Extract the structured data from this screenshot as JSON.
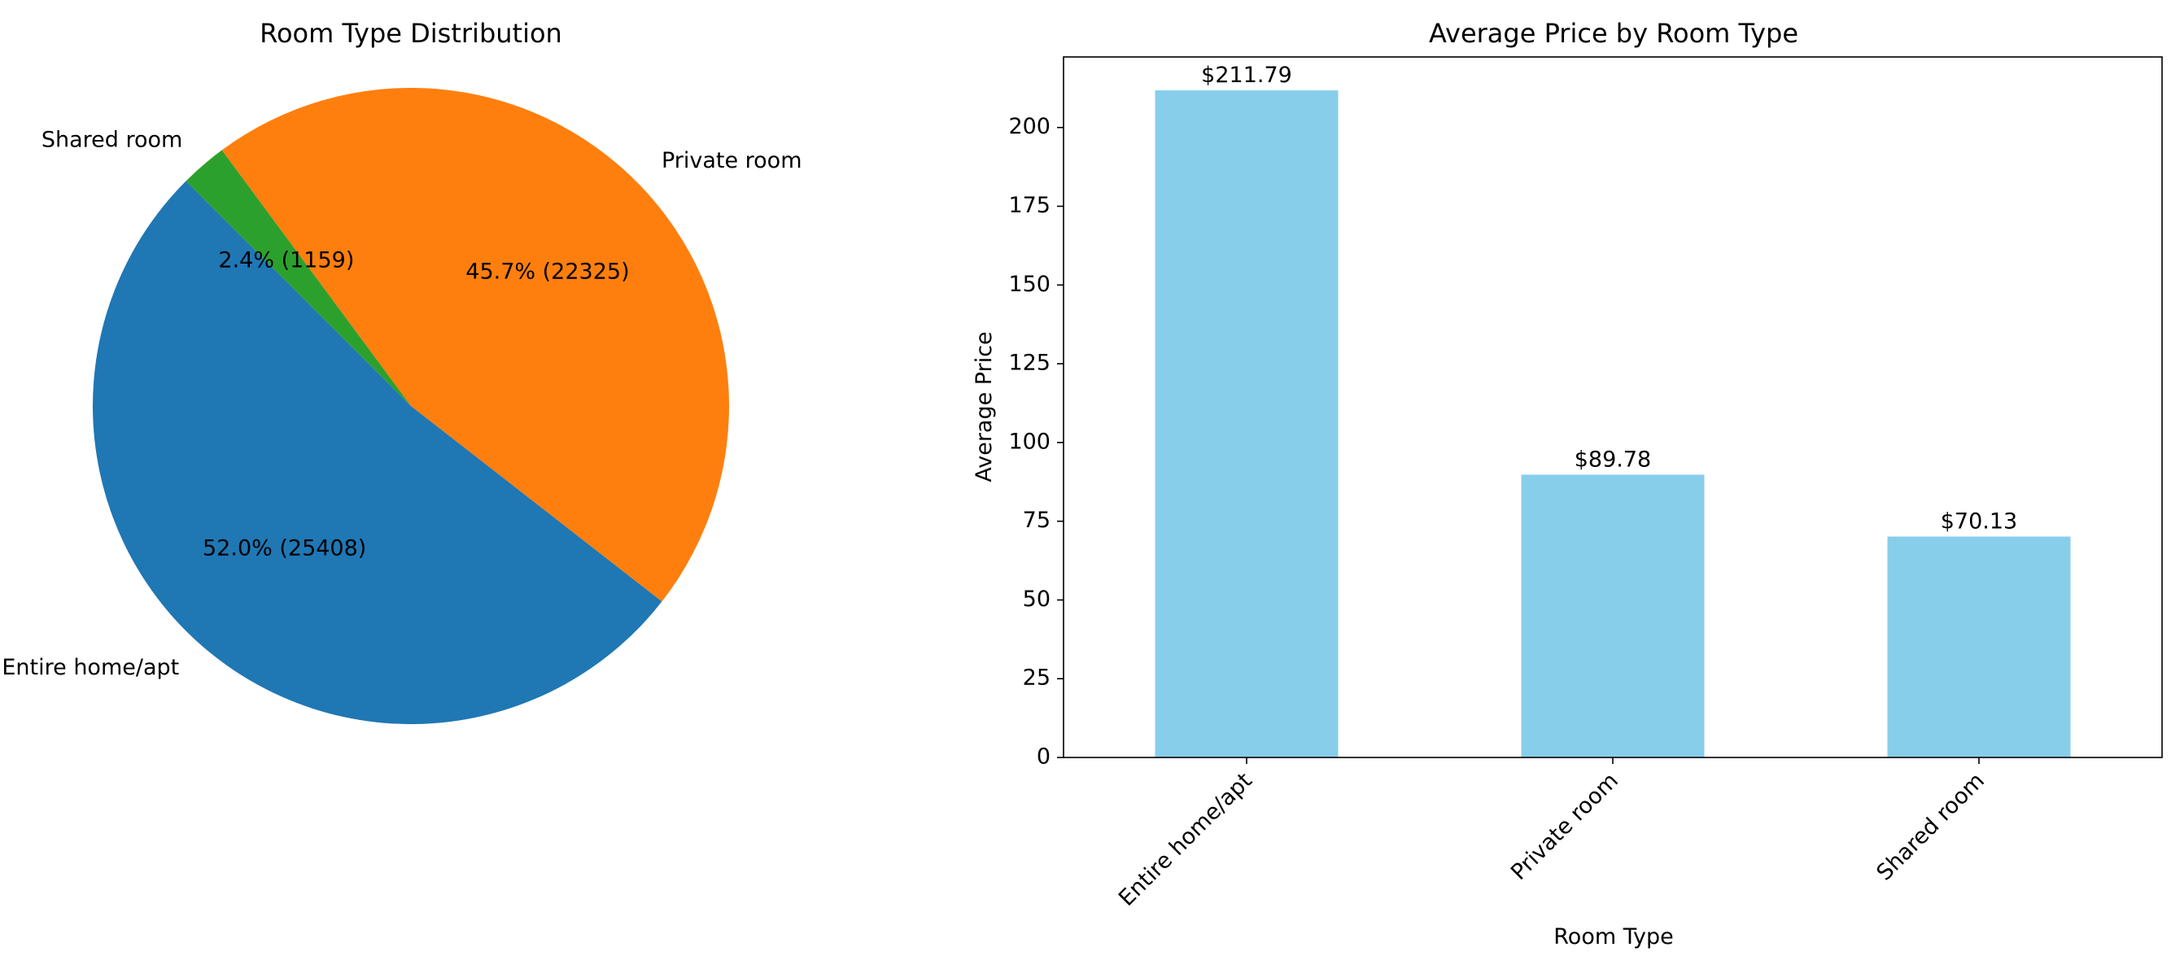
{
  "chart_data": [
    {
      "type": "pie",
      "title": "Room Type Distribution",
      "slices": [
        {
          "label": "Entire home/apt",
          "value": 25408,
          "percent_label": "52.0% (25408)",
          "color": "#1f77b4"
        },
        {
          "label": "Private room",
          "value": 22325,
          "percent_label": "45.7% (22325)",
          "color": "#ff7f0e"
        },
        {
          "label": "Shared room",
          "value": 1159,
          "percent_label": "2.4% (1159)",
          "color": "#2ca02c"
        }
      ],
      "legend": "none"
    },
    {
      "type": "bar",
      "title": "Average Price by Room Type",
      "categories": [
        "Entire home/apt",
        "Private room",
        "Shared room"
      ],
      "values": [
        211.79,
        89.78,
        70.13
      ],
      "value_labels": [
        "$211.79",
        "$89.78",
        "$70.13"
      ],
      "xlabel": "Room Type",
      "ylabel": "Average Price",
      "ylim": [
        0,
        222.4
      ],
      "yticks": [
        "0",
        "25",
        "50",
        "75",
        "100",
        "125",
        "150",
        "175",
        "200"
      ],
      "bar_color": "#87ceeb",
      "grid": false
    }
  ]
}
